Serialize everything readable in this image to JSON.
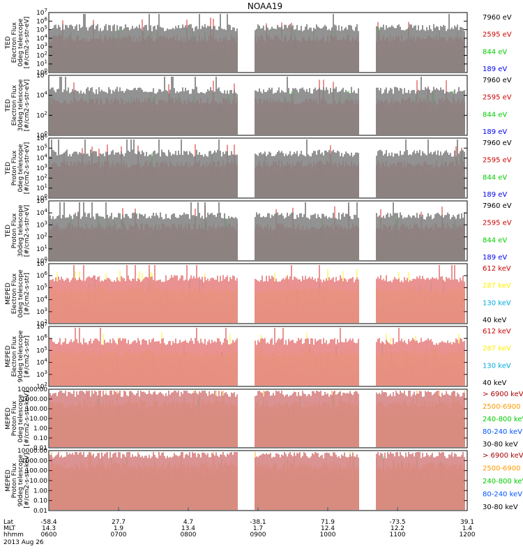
{
  "chart_data": {
    "type": "line",
    "title": "NOAA19",
    "date_label": "2013 Aug 26",
    "x_tick_rows": [
      {
        "name": "Lat",
        "values": [
          "-58.4",
          "27.7",
          "4.7",
          "-38.1",
          "71.9",
          "-73.5",
          "39.1"
        ]
      },
      {
        "name": "MLT",
        "values": [
          "14.3",
          "1.9",
          "13.4",
          "1.7",
          "12.4",
          "12.2",
          "1.4"
        ]
      },
      {
        "name": "hhmm",
        "values": [
          "0600",
          "0700",
          "0800",
          "0900",
          "1000",
          "1100",
          "1200"
        ]
      }
    ],
    "panels": [
      {
        "ylabel": [
          "TED",
          "Electron Flux",
          "0deg telescope",
          "[#/cm2-s-str-eV]"
        ],
        "y_ticks": [
          "10^7",
          "10^6",
          "10^5",
          "10^4",
          "10^3",
          "10^2",
          "10^1",
          "10^0"
        ],
        "legend": [
          {
            "label": "7960 eV",
            "color": "#000000"
          },
          {
            "label": "2595 eV",
            "color": "#cc0000"
          },
          {
            "label": "844 eV",
            "color": "#00cc00"
          },
          {
            "label": "189 eV",
            "color": "#0000ee"
          }
        ]
      },
      {
        "ylabel": [
          "TED",
          "Electron Flux",
          "30deg telescope",
          "[#/cm2-s-str-eV]"
        ],
        "y_ticks": [
          "10^6",
          "10^4",
          "10^2",
          "10^0"
        ],
        "legend": [
          {
            "label": "7960 eV",
            "color": "#000000"
          },
          {
            "label": "2595 eV",
            "color": "#cc0000"
          },
          {
            "label": "844 eV",
            "color": "#00cc00"
          },
          {
            "label": "189 eV",
            "color": "#0000ee"
          }
        ]
      },
      {
        "ylabel": [
          "TED",
          "Proton Flux",
          "0deg telescope",
          "[#/cm2-s-str-eV]"
        ],
        "y_ticks": [
          "10^6",
          "10^5",
          "10^4",
          "10^3",
          "10^2",
          "10^1",
          "10^0"
        ],
        "legend": [
          {
            "label": "7960 eV",
            "color": "#000000"
          },
          {
            "label": "2595 eV",
            "color": "#cc0000"
          },
          {
            "label": "844 eV",
            "color": "#00cc00"
          },
          {
            "label": "189 eV",
            "color": "#0000ee"
          }
        ]
      },
      {
        "ylabel": [
          "TED",
          "Proton Flux",
          "30deg telescope",
          "[#/cm2-s-str-eV]"
        ],
        "y_ticks": [
          "10^5",
          "10^4",
          "10^3",
          "10^2",
          "10^1",
          "10^0"
        ],
        "legend": [
          {
            "label": "7960 eV",
            "color": "#000000"
          },
          {
            "label": "2595 eV",
            "color": "#cc0000"
          },
          {
            "label": "844 eV",
            "color": "#00cc00"
          },
          {
            "label": "189 eV",
            "color": "#0000ee"
          }
        ]
      },
      {
        "ylabel": [
          "MEPED",
          "Electron Flux",
          "0deg telescope",
          "[#/cm2-s-str]"
        ],
        "y_ticks": [
          "10^7",
          "10^6",
          "10^5",
          "10^4",
          "10^3",
          "10^2"
        ],
        "legend": [
          {
            "label": "612 keV",
            "color": "#cc0000"
          },
          {
            "label": "287 keV",
            "color": "#ffee00"
          },
          {
            "label": "130 keV",
            "color": "#00aadd"
          },
          {
            "label": "40 keV",
            "color": "#000000"
          }
        ]
      },
      {
        "ylabel": [
          "MEPED",
          "Electron Flux",
          "90deg telescope",
          "[#/cm2-s-str]"
        ],
        "y_ticks": [
          "10^7",
          "10^6",
          "10^5",
          "10^4",
          "10^3",
          "10^2"
        ],
        "legend": [
          {
            "label": "612 keV",
            "color": "#cc0000"
          },
          {
            "label": "287 keV",
            "color": "#ffee00"
          },
          {
            "label": "130 keV",
            "color": "#00aadd"
          },
          {
            "label": "40 keV",
            "color": "#000000"
          }
        ]
      },
      {
        "ylabel": [
          "MEPED",
          "Proton Flux",
          "0deg telescope",
          "[#/cm2-s-str-keV]"
        ],
        "y_ticks": [
          "10000.00",
          "1000.00",
          "100.00",
          "10.00",
          "1.00",
          "0.10",
          "0.01"
        ],
        "legend": [
          {
            "label": "> 6900 keV",
            "color": "#aa0000"
          },
          {
            "label": "2500-6900",
            "color": "#ff9900"
          },
          {
            "label": "240-800 keV",
            "color": "#00cc00"
          },
          {
            "label": "80-240 keV",
            "color": "#0055ff"
          },
          {
            "label": "30-80 keV",
            "color": "#000000"
          }
        ]
      },
      {
        "ylabel": [
          "MEPED",
          "Proton Flux",
          "90deg telescope",
          "[#/cm2-s-str-keV]"
        ],
        "y_ticks": [
          "10000.00",
          "1000.00",
          "100.00",
          "10.00",
          "1.00",
          "0.10",
          "0.01"
        ],
        "legend": [
          {
            "label": "> 6900 keV",
            "color": "#aa0000"
          },
          {
            "label": "2500-6900",
            "color": "#ff9900"
          },
          {
            "label": "240-800 keV",
            "color": "#00cc00"
          },
          {
            "label": "80-240 keV",
            "color": "#0055ff"
          },
          {
            "label": "30-80 keV",
            "color": "#000000"
          }
        ]
      }
    ]
  }
}
